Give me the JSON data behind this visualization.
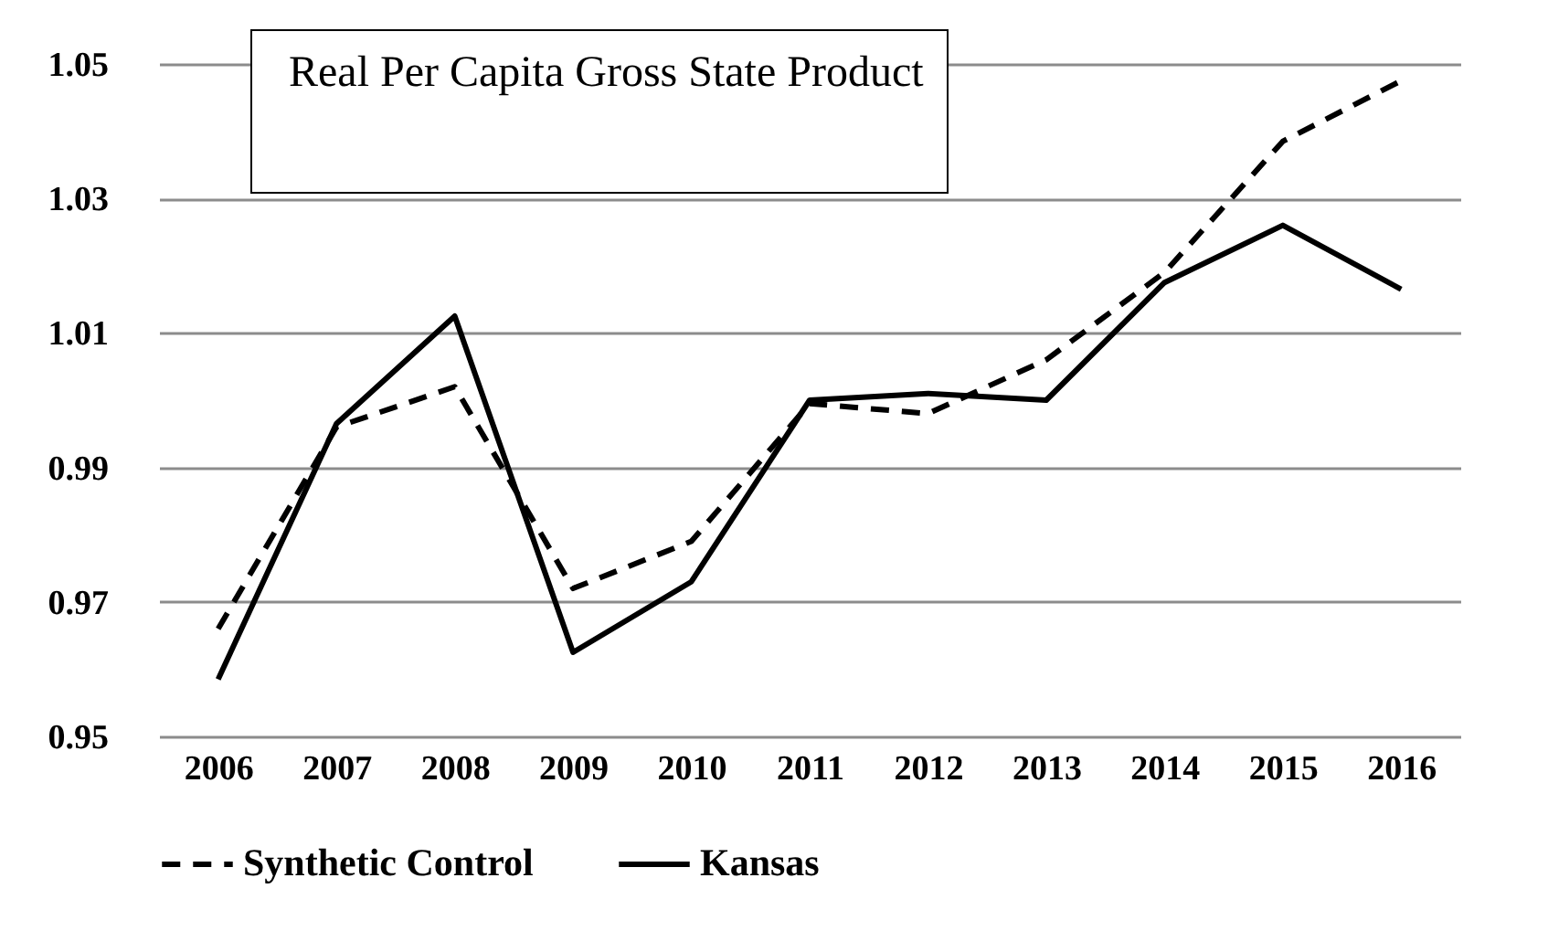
{
  "chart_data": {
    "type": "line",
    "title": "Real Per Capita Gross State Product",
    "categories": [
      "2006",
      "2007",
      "2008",
      "2009",
      "2010",
      "2011",
      "2012",
      "2013",
      "2014",
      "2015",
      "2016"
    ],
    "series": [
      {
        "name": "Synthetic Control",
        "color": "#000000",
        "line_style": "dashed",
        "values": [
          0.966,
          0.996,
          1.002,
          0.972,
          0.979,
          0.9995,
          0.998,
          1.006,
          1.019,
          1.0385,
          1.0475
        ]
      },
      {
        "name": "Kansas",
        "color": "#000000",
        "line_style": "solid",
        "values": [
          0.9585,
          0.9965,
          1.0125,
          0.9625,
          0.973,
          1.0,
          1.001,
          1.0,
          1.0175,
          1.026,
          1.0165
        ]
      }
    ],
    "ylim": [
      0.95,
      1.05
    ],
    "yticks": [
      0.95,
      0.97,
      0.99,
      1.01,
      1.03,
      1.05
    ],
    "grid": "y",
    "legend": "bottom"
  }
}
